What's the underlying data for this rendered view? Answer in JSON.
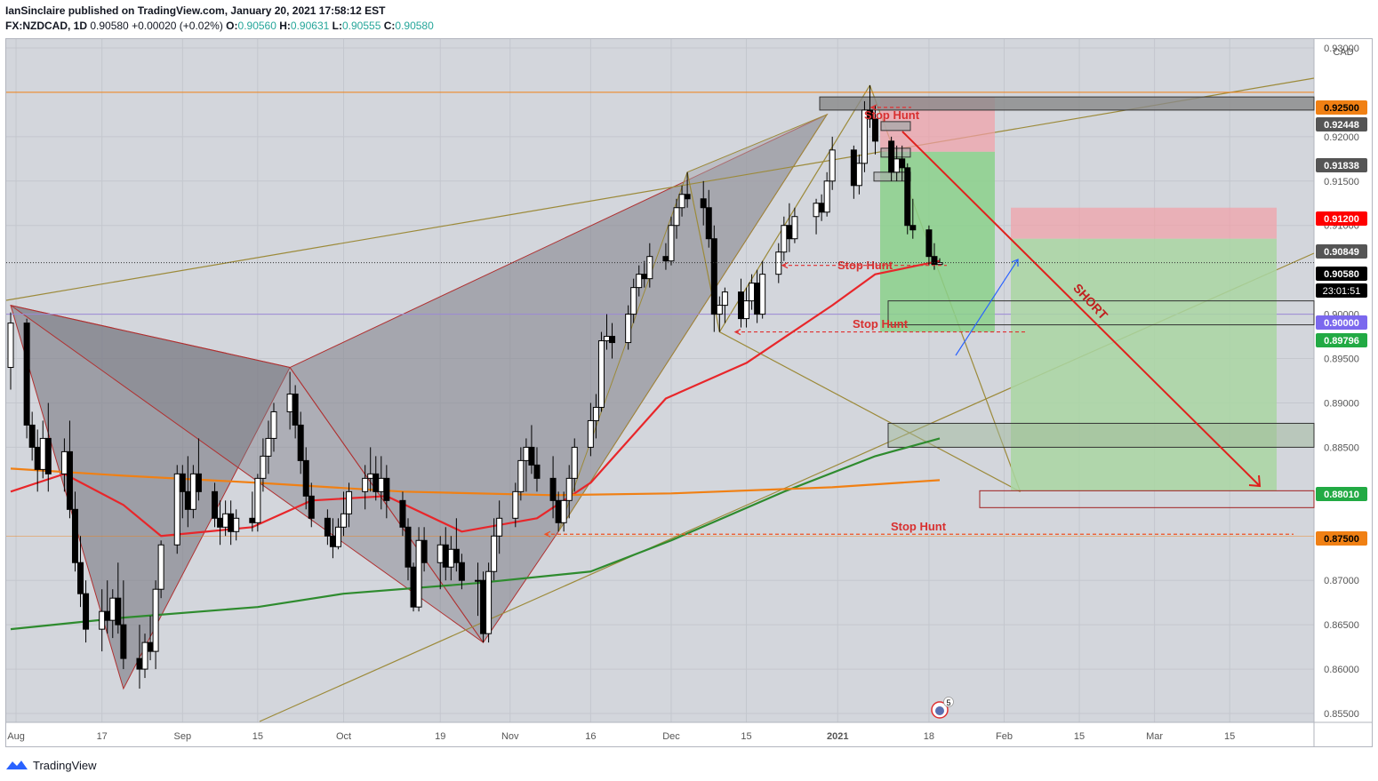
{
  "header": {
    "publisher_line": "IanSinclaire published on TradingView.com, January 20, 2021 17:58:12 EST",
    "symbol": "FX:NZDCAD, 1D",
    "last": "0.90580",
    "change": "+0.00020 (+0.02%)",
    "o_label": "O:",
    "o": "0.90560",
    "h_label": "H:",
    "h": "0.90631",
    "l_label": "L:",
    "l": "0.90555",
    "c_label": "C:",
    "c": "0.90580"
  },
  "footer": {
    "brand": "TradingView",
    "icon": "tradingview-logo-icon"
  },
  "colors": {
    "up": "#ffffff",
    "down": "#000000",
    "ema_fast": "#e8262a",
    "ema_mid": "#2e8b2e",
    "ema_slow": "#f08014",
    "pattern_fill": "#7f7f88",
    "trend_line": "#9c8a3a",
    "orange_level": "#f08014",
    "purple_level": "#9c8ad6",
    "target_box": "#8bd18b",
    "stop_box": "#f2a0a6",
    "short_arrow": "#e0201c",
    "blue_arrow": "#2962ff"
  },
  "chart_data": {
    "type": "candlestick",
    "symbol": "FX:NZDCAD",
    "timeframe": "1D",
    "y_axis_unit": "CAD",
    "ylim": [
      0.854,
      0.931
    ],
    "grid": true,
    "y_ticks": [
      "0.93000",
      "0.92000",
      "0.91500",
      "0.91000",
      "0.90000",
      "0.89500",
      "0.89000",
      "0.88500",
      "0.87000",
      "0.86500",
      "0.86000",
      "0.85500"
    ],
    "x_tick_labels": [
      "Aug",
      "17",
      "Sep",
      "15",
      "Oct",
      "19",
      "Nov",
      "16",
      "Dec",
      "15",
      "2021",
      "18",
      "Feb",
      "15",
      "Mar",
      "15"
    ],
    "x_tick_dates": [
      "2020-08-01",
      "2020-08-17",
      "2020-09-01",
      "2020-09-15",
      "2020-10-01",
      "2020-10-19",
      "2020-11-01",
      "2020-11-16",
      "2020-12-01",
      "2020-12-15",
      "2021-01-01",
      "2021-01-18",
      "2021-02-01",
      "2021-02-15",
      "2021-03-01",
      "2021-03-15"
    ],
    "price_labels": [
      {
        "value": "0.92500",
        "color": "#f08014",
        "text_color": "#000000"
      },
      {
        "value": "0.92448",
        "color": "#555555",
        "text_color": "#ffffff"
      },
      {
        "value": "0.91838",
        "color": "#555555",
        "text_color": "#ffffff"
      },
      {
        "value": "0.91200",
        "color": "#ff0000",
        "text_color": "#ffffff"
      },
      {
        "value": "0.90849",
        "color": "#555555",
        "text_color": "#ffffff"
      },
      {
        "value": "0.90580",
        "color": "#000000",
        "text_color": "#ffffff"
      },
      {
        "value": "0.90000",
        "color": "#7b68ee",
        "text_color": "#ffffff"
      },
      {
        "value": "0.89796",
        "color": "#22aa44",
        "text_color": "#ffffff"
      },
      {
        "value": "0.88010",
        "color": "#22aa44",
        "text_color": "#ffffff"
      },
      {
        "value": "0.87500",
        "color": "#f08014",
        "text_color": "#000000"
      }
    ],
    "countdown": "23:01:51",
    "annotations": [
      {
        "text": "Stop Hunt",
        "price": 0.924
      },
      {
        "text": "Stop Hunt",
        "price": 0.906
      },
      {
        "text": "Stop Hunt",
        "price": 0.899
      },
      {
        "text": "Stop Hunt",
        "price": 0.877
      },
      {
        "text": "SHORT",
        "price": 0.903
      }
    ],
    "marker_badge": "5",
    "horizontal_levels": [
      0.925,
      0.9,
      0.875
    ],
    "candles": [
      {
        "date": "2020-07-31",
        "o": 0.894,
        "h": 0.9002,
        "l": 0.8915,
        "c": 0.899
      },
      {
        "date": "2020-08-03",
        "o": 0.899,
        "h": 0.8995,
        "l": 0.886,
        "c": 0.8875
      },
      {
        "date": "2020-08-04",
        "o": 0.8875,
        "h": 0.889,
        "l": 0.8835,
        "c": 0.885
      },
      {
        "date": "2020-08-05",
        "o": 0.885,
        "h": 0.887,
        "l": 0.88,
        "c": 0.8825
      },
      {
        "date": "2020-08-06",
        "o": 0.8825,
        "h": 0.888,
        "l": 0.8815,
        "c": 0.886
      },
      {
        "date": "2020-08-07",
        "o": 0.886,
        "h": 0.89,
        "l": 0.88,
        "c": 0.882
      },
      {
        "date": "2020-08-10",
        "o": 0.882,
        "h": 0.886,
        "l": 0.88,
        "c": 0.8845
      },
      {
        "date": "2020-08-11",
        "o": 0.8845,
        "h": 0.888,
        "l": 0.877,
        "c": 0.878
      },
      {
        "date": "2020-08-12",
        "o": 0.878,
        "h": 0.88,
        "l": 0.871,
        "c": 0.872
      },
      {
        "date": "2020-08-13",
        "o": 0.872,
        "h": 0.875,
        "l": 0.867,
        "c": 0.8685
      },
      {
        "date": "2020-08-14",
        "o": 0.8685,
        "h": 0.87,
        "l": 0.863,
        "c": 0.8645
      },
      {
        "date": "2020-08-17",
        "o": 0.8645,
        "h": 0.869,
        "l": 0.862,
        "c": 0.8665
      },
      {
        "date": "2020-08-18",
        "o": 0.8665,
        "h": 0.87,
        "l": 0.864,
        "c": 0.8655
      },
      {
        "date": "2020-08-19",
        "o": 0.8655,
        "h": 0.869,
        "l": 0.8635,
        "c": 0.868
      },
      {
        "date": "2020-08-20",
        "o": 0.868,
        "h": 0.872,
        "l": 0.864,
        "c": 0.865
      },
      {
        "date": "2020-08-21",
        "o": 0.865,
        "h": 0.87,
        "l": 0.86,
        "c": 0.8612
      },
      {
        "date": "2020-08-24",
        "o": 0.8612,
        "h": 0.865,
        "l": 0.8578,
        "c": 0.86
      },
      {
        "date": "2020-08-25",
        "o": 0.86,
        "h": 0.864,
        "l": 0.859,
        "c": 0.863
      },
      {
        "date": "2020-08-26",
        "o": 0.863,
        "h": 0.866,
        "l": 0.861,
        "c": 0.862
      },
      {
        "date": "2020-08-27",
        "o": 0.862,
        "h": 0.87,
        "l": 0.86,
        "c": 0.869
      },
      {
        "date": "2020-08-28",
        "o": 0.869,
        "h": 0.8745,
        "l": 0.868,
        "c": 0.874
      },
      {
        "date": "2020-08-31",
        "o": 0.874,
        "h": 0.883,
        "l": 0.873,
        "c": 0.882
      },
      {
        "date": "2020-09-01",
        "o": 0.882,
        "h": 0.883,
        "l": 0.877,
        "c": 0.88
      },
      {
        "date": "2020-09-02",
        "o": 0.88,
        "h": 0.884,
        "l": 0.876,
        "c": 0.878
      },
      {
        "date": "2020-09-03",
        "o": 0.878,
        "h": 0.883,
        "l": 0.877,
        "c": 0.882
      },
      {
        "date": "2020-09-04",
        "o": 0.882,
        "h": 0.886,
        "l": 0.879,
        "c": 0.88
      },
      {
        "date": "2020-09-07",
        "o": 0.88,
        "h": 0.881,
        "l": 0.876,
        "c": 0.877
      },
      {
        "date": "2020-09-08",
        "o": 0.877,
        "h": 0.879,
        "l": 0.874,
        "c": 0.876
      },
      {
        "date": "2020-09-09",
        "o": 0.876,
        "h": 0.879,
        "l": 0.875,
        "c": 0.8775
      },
      {
        "date": "2020-09-10",
        "o": 0.8775,
        "h": 0.879,
        "l": 0.874,
        "c": 0.8755
      },
      {
        "date": "2020-09-11",
        "o": 0.8755,
        "h": 0.878,
        "l": 0.8745,
        "c": 0.877
      },
      {
        "date": "2020-09-14",
        "o": 0.877,
        "h": 0.88,
        "l": 0.8755,
        "c": 0.8765
      },
      {
        "date": "2020-09-15",
        "o": 0.8765,
        "h": 0.882,
        "l": 0.8755,
        "c": 0.8815
      },
      {
        "date": "2020-09-16",
        "o": 0.8815,
        "h": 0.886,
        "l": 0.88,
        "c": 0.884
      },
      {
        "date": "2020-09-17",
        "o": 0.884,
        "h": 0.888,
        "l": 0.882,
        "c": 0.886
      },
      {
        "date": "2020-09-18",
        "o": 0.886,
        "h": 0.89,
        "l": 0.8845,
        "c": 0.889
      },
      {
        "date": "2020-09-21",
        "o": 0.889,
        "h": 0.8935,
        "l": 0.887,
        "c": 0.891
      },
      {
        "date": "2020-09-22",
        "o": 0.891,
        "h": 0.892,
        "l": 0.886,
        "c": 0.8875
      },
      {
        "date": "2020-09-23",
        "o": 0.8875,
        "h": 0.889,
        "l": 0.882,
        "c": 0.8835
      },
      {
        "date": "2020-09-24",
        "o": 0.8835,
        "h": 0.885,
        "l": 0.878,
        "c": 0.8795
      },
      {
        "date": "2020-09-25",
        "o": 0.8795,
        "h": 0.881,
        "l": 0.876,
        "c": 0.877
      },
      {
        "date": "2020-09-28",
        "o": 0.877,
        "h": 0.878,
        "l": 0.874,
        "c": 0.875
      },
      {
        "date": "2020-09-29",
        "o": 0.875,
        "h": 0.877,
        "l": 0.8725,
        "c": 0.8738
      },
      {
        "date": "2020-09-30",
        "o": 0.8738,
        "h": 0.877,
        "l": 0.8735,
        "c": 0.876
      },
      {
        "date": "2020-10-01",
        "o": 0.876,
        "h": 0.88,
        "l": 0.875,
        "c": 0.8775
      },
      {
        "date": "2020-10-02",
        "o": 0.8775,
        "h": 0.881,
        "l": 0.876,
        "c": 0.88
      },
      {
        "date": "2020-10-05",
        "o": 0.88,
        "h": 0.883,
        "l": 0.878,
        "c": 0.8815
      },
      {
        "date": "2020-10-06",
        "o": 0.8815,
        "h": 0.885,
        "l": 0.88,
        "c": 0.882
      },
      {
        "date": "2020-10-07",
        "o": 0.882,
        "h": 0.884,
        "l": 0.879,
        "c": 0.88
      },
      {
        "date": "2020-10-08",
        "o": 0.88,
        "h": 0.884,
        "l": 0.878,
        "c": 0.8815
      },
      {
        "date": "2020-10-09",
        "o": 0.8815,
        "h": 0.883,
        "l": 0.877,
        "c": 0.879
      },
      {
        "date": "2020-10-12",
        "o": 0.879,
        "h": 0.88,
        "l": 0.875,
        "c": 0.876
      },
      {
        "date": "2020-10-13",
        "o": 0.876,
        "h": 0.877,
        "l": 0.87,
        "c": 0.8715
      },
      {
        "date": "2020-10-14",
        "o": 0.8715,
        "h": 0.872,
        "l": 0.8665,
        "c": 0.867
      },
      {
        "date": "2020-10-15",
        "o": 0.867,
        "h": 0.876,
        "l": 0.8665,
        "c": 0.8745
      },
      {
        "date": "2020-10-16",
        "o": 0.8745,
        "h": 0.876,
        "l": 0.871,
        "c": 0.872
      },
      {
        "date": "2020-10-19",
        "o": 0.872,
        "h": 0.875,
        "l": 0.869,
        "c": 0.874
      },
      {
        "date": "2020-10-20",
        "o": 0.874,
        "h": 0.876,
        "l": 0.87,
        "c": 0.8715
      },
      {
        "date": "2020-10-21",
        "o": 0.8715,
        "h": 0.875,
        "l": 0.87,
        "c": 0.8735
      },
      {
        "date": "2020-10-22",
        "o": 0.8735,
        "h": 0.877,
        "l": 0.871,
        "c": 0.872
      },
      {
        "date": "2020-10-23",
        "o": 0.872,
        "h": 0.873,
        "l": 0.869,
        "c": 0.87
      },
      {
        "date": "2020-10-26",
        "o": 0.87,
        "h": 0.872,
        "l": 0.866,
        "c": 0.87
      },
      {
        "date": "2020-10-27",
        "o": 0.87,
        "h": 0.871,
        "l": 0.863,
        "c": 0.864
      },
      {
        "date": "2020-10-28",
        "o": 0.864,
        "h": 0.872,
        "l": 0.863,
        "c": 0.871
      },
      {
        "date": "2020-10-29",
        "o": 0.871,
        "h": 0.877,
        "l": 0.87,
        "c": 0.875
      },
      {
        "date": "2020-10-30",
        "o": 0.875,
        "h": 0.879,
        "l": 0.873,
        "c": 0.877
      },
      {
        "date": "2020-11-02",
        "o": 0.877,
        "h": 0.881,
        "l": 0.876,
        "c": 0.88
      },
      {
        "date": "2020-11-03",
        "o": 0.88,
        "h": 0.885,
        "l": 0.879,
        "c": 0.8835
      },
      {
        "date": "2020-11-04",
        "o": 0.8835,
        "h": 0.886,
        "l": 0.88,
        "c": 0.885
      },
      {
        "date": "2020-11-05",
        "o": 0.885,
        "h": 0.8875,
        "l": 0.882,
        "c": 0.883
      },
      {
        "date": "2020-11-06",
        "o": 0.883,
        "h": 0.885,
        "l": 0.88,
        "c": 0.8815
      },
      {
        "date": "2020-11-09",
        "o": 0.8815,
        "h": 0.884,
        "l": 0.877,
        "c": 0.879
      },
      {
        "date": "2020-11-10",
        "o": 0.879,
        "h": 0.88,
        "l": 0.8755,
        "c": 0.8765
      },
      {
        "date": "2020-11-11",
        "o": 0.8765,
        "h": 0.88,
        "l": 0.8755,
        "c": 0.879
      },
      {
        "date": "2020-11-12",
        "o": 0.879,
        "h": 0.883,
        "l": 0.877,
        "c": 0.8815
      },
      {
        "date": "2020-11-13",
        "o": 0.8815,
        "h": 0.886,
        "l": 0.88,
        "c": 0.885
      },
      {
        "date": "2020-11-16",
        "o": 0.885,
        "h": 0.89,
        "l": 0.884,
        "c": 0.888
      },
      {
        "date": "2020-11-17",
        "o": 0.888,
        "h": 0.891,
        "l": 0.886,
        "c": 0.8895
      },
      {
        "date": "2020-11-18",
        "o": 0.8895,
        "h": 0.898,
        "l": 0.889,
        "c": 0.897
      },
      {
        "date": "2020-11-19",
        "o": 0.897,
        "h": 0.9,
        "l": 0.896,
        "c": 0.8975
      },
      {
        "date": "2020-11-20",
        "o": 0.8975,
        "h": 0.899,
        "l": 0.895,
        "c": 0.8968
      },
      {
        "date": "2020-11-23",
        "o": 0.8968,
        "h": 0.901,
        "l": 0.896,
        "c": 0.9
      },
      {
        "date": "2020-11-24",
        "o": 0.9,
        "h": 0.904,
        "l": 0.899,
        "c": 0.903
      },
      {
        "date": "2020-11-25",
        "o": 0.903,
        "h": 0.9055,
        "l": 0.902,
        "c": 0.9045
      },
      {
        "date": "2020-11-26",
        "o": 0.9045,
        "h": 0.906,
        "l": 0.903,
        "c": 0.904
      },
      {
        "date": "2020-11-27",
        "o": 0.904,
        "h": 0.908,
        "l": 0.903,
        "c": 0.9065
      },
      {
        "date": "2020-11-30",
        "o": 0.9065,
        "h": 0.908,
        "l": 0.905,
        "c": 0.906
      },
      {
        "date": "2020-12-01",
        "o": 0.906,
        "h": 0.911,
        "l": 0.9055,
        "c": 0.91
      },
      {
        "date": "2020-12-02",
        "o": 0.91,
        "h": 0.913,
        "l": 0.9085,
        "c": 0.912
      },
      {
        "date": "2020-12-03",
        "o": 0.912,
        "h": 0.9145,
        "l": 0.911,
        "c": 0.9135
      },
      {
        "date": "2020-12-04",
        "o": 0.9135,
        "h": 0.916,
        "l": 0.912,
        "c": 0.913
      },
      {
        "date": "2020-12-07",
        "o": 0.913,
        "h": 0.915,
        "l": 0.91,
        "c": 0.912
      },
      {
        "date": "2020-12-08",
        "o": 0.912,
        "h": 0.914,
        "l": 0.9075,
        "c": 0.9085
      },
      {
        "date": "2020-12-09",
        "o": 0.9085,
        "h": 0.91,
        "l": 0.898,
        "c": 0.9
      },
      {
        "date": "2020-12-10",
        "o": 0.9,
        "h": 0.902,
        "l": 0.898,
        "c": 0.901
      },
      {
        "date": "2020-12-11",
        "o": 0.901,
        "h": 0.903,
        "l": 0.899,
        "c": 0.9025
      },
      {
        "date": "2020-12-14",
        "o": 0.9025,
        "h": 0.904,
        "l": 0.8985,
        "c": 0.8995
      },
      {
        "date": "2020-12-15",
        "o": 0.8995,
        "h": 0.903,
        "l": 0.8985,
        "c": 0.9015
      },
      {
        "date": "2020-12-16",
        "o": 0.9015,
        "h": 0.9045,
        "l": 0.9005,
        "c": 0.9035
      },
      {
        "date": "2020-12-17",
        "o": 0.9035,
        "h": 0.905,
        "l": 0.899,
        "c": 0.9
      },
      {
        "date": "2020-12-18",
        "o": 0.9,
        "h": 0.906,
        "l": 0.8995,
        "c": 0.9045
      },
      {
        "date": "2020-12-21",
        "o": 0.9045,
        "h": 0.908,
        "l": 0.9035,
        "c": 0.907
      },
      {
        "date": "2020-12-22",
        "o": 0.907,
        "h": 0.911,
        "l": 0.906,
        "c": 0.91
      },
      {
        "date": "2020-12-23",
        "o": 0.91,
        "h": 0.9125,
        "l": 0.907,
        "c": 0.9085
      },
      {
        "date": "2020-12-24",
        "o": 0.9085,
        "h": 0.912,
        "l": 0.908,
        "c": 0.911
      },
      {
        "date": "2020-12-28",
        "o": 0.911,
        "h": 0.913,
        "l": 0.909,
        "c": 0.9125
      },
      {
        "date": "2020-12-29",
        "o": 0.9125,
        "h": 0.9135,
        "l": 0.9105,
        "c": 0.9115
      },
      {
        "date": "2020-12-30",
        "o": 0.9115,
        "h": 0.916,
        "l": 0.911,
        "c": 0.915
      },
      {
        "date": "2020-12-31",
        "o": 0.915,
        "h": 0.92,
        "l": 0.914,
        "c": 0.9185
      },
      {
        "date": "2021-01-04",
        "o": 0.9185,
        "h": 0.919,
        "l": 0.913,
        "c": 0.9145
      },
      {
        "date": "2021-01-05",
        "o": 0.9145,
        "h": 0.918,
        "l": 0.9135,
        "c": 0.917
      },
      {
        "date": "2021-01-06",
        "o": 0.917,
        "h": 0.924,
        "l": 0.916,
        "c": 0.923
      },
      {
        "date": "2021-01-07",
        "o": 0.923,
        "h": 0.9258,
        "l": 0.921,
        "c": 0.922
      },
      {
        "date": "2021-01-08",
        "o": 0.922,
        "h": 0.9235,
        "l": 0.918,
        "c": 0.9195
      },
      {
        "date": "2021-01-11",
        "o": 0.9195,
        "h": 0.92,
        "l": 0.915,
        "c": 0.916
      },
      {
        "date": "2021-01-12",
        "o": 0.916,
        "h": 0.919,
        "l": 0.915,
        "c": 0.9175
      },
      {
        "date": "2021-01-13",
        "o": 0.9175,
        "h": 0.919,
        "l": 0.915,
        "c": 0.9165
      },
      {
        "date": "2021-01-14",
        "o": 0.9165,
        "h": 0.917,
        "l": 0.909,
        "c": 0.91
      },
      {
        "date": "2021-01-15",
        "o": 0.91,
        "h": 0.913,
        "l": 0.9085,
        "c": 0.9095
      },
      {
        "date": "2021-01-18",
        "o": 0.9095,
        "h": 0.91,
        "l": 0.9055,
        "c": 0.9065
      },
      {
        "date": "2021-01-19",
        "o": 0.9065,
        "h": 0.908,
        "l": 0.905,
        "c": 0.9056
      },
      {
        "date": "2021-01-20",
        "o": 0.9056,
        "h": 0.9063,
        "l": 0.9055,
        "c": 0.9058
      }
    ]
  }
}
